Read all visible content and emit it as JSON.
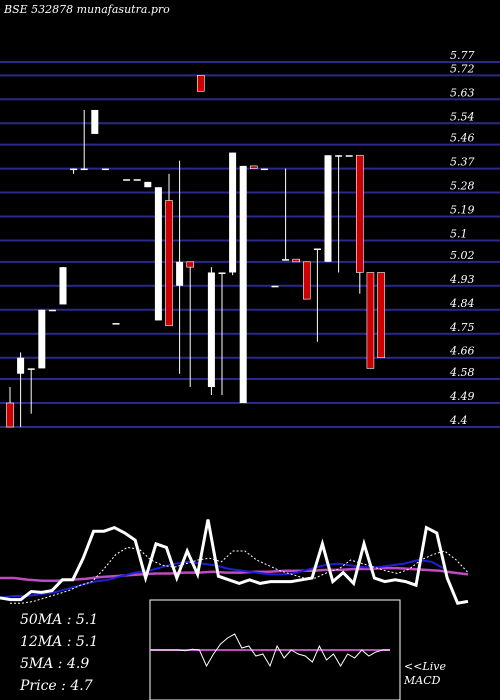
{
  "watermark": "BSE 532878  munafasutra.pro",
  "chart_data": {
    "type": "candlestick",
    "y_ticks": [
      5.77,
      5.72,
      5.63,
      5.54,
      5.46,
      5.37,
      5.28,
      5.19,
      5.1,
      5.02,
      4.93,
      4.84,
      4.75,
      4.66,
      4.58,
      4.49,
      4.4
    ],
    "y_tick_labels": [
      "5.77",
      "5.72",
      "5.63",
      "5.54",
      "5.46",
      "5.37",
      "5.28",
      "5.19",
      "5.1",
      "5.02",
      "4.93",
      "4.84",
      "4.75",
      "4.66",
      "4.58",
      "4.49",
      "4.4"
    ],
    "ylim": [
      4.4,
      5.77
    ],
    "grid": true,
    "candles": [
      {
        "o": 4.49,
        "c": 4.4,
        "h": 4.55,
        "l": 4.4
      },
      {
        "o": 4.6,
        "c": 4.66,
        "h": 4.68,
        "l": 4.4
      },
      {
        "o": 4.62,
        "c": 4.62,
        "h": 4.62,
        "l": 4.45
      },
      {
        "o": 4.62,
        "c": 4.84,
        "h": 4.84,
        "l": 4.62
      },
      {
        "o": 4.84,
        "c": 4.84,
        "h": 4.84,
        "l": 4.84
      },
      {
        "o": 4.86,
        "c": 5.0,
        "h": 5.0,
        "l": 4.86
      },
      {
        "o": 5.37,
        "c": 5.37,
        "h": 5.37,
        "l": 5.35
      },
      {
        "o": 5.37,
        "c": 5.37,
        "h": 5.59,
        "l": 5.37
      },
      {
        "o": 5.5,
        "c": 5.59,
        "h": 5.59,
        "l": 5.5
      },
      {
        "o": 5.37,
        "c": 5.37,
        "h": 5.37,
        "l": 5.37
      },
      {
        "o": 4.79,
        "c": 4.79,
        "h": 4.79,
        "l": 4.79
      },
      {
        "o": 5.33,
        "c": 5.33,
        "h": 5.33,
        "l": 5.33
      },
      {
        "o": 5.33,
        "c": 5.33,
        "h": 5.33,
        "l": 5.33
      },
      {
        "o": 5.3,
        "c": 5.32,
        "h": 5.32,
        "l": 5.3
      },
      {
        "o": 4.8,
        "c": 5.3,
        "h": 5.3,
        "l": 4.8
      },
      {
        "o": 5.25,
        "c": 4.78,
        "h": 5.35,
        "l": 4.78
      },
      {
        "o": 4.93,
        "c": 5.02,
        "h": 5.4,
        "l": 4.6
      },
      {
        "o": 5.02,
        "c": 5.0,
        "h": 5.02,
        "l": 4.55
      },
      {
        "o": 5.72,
        "c": 5.66,
        "h": 5.72,
        "l": 5.66
      },
      {
        "o": 4.55,
        "c": 4.98,
        "h": 5.0,
        "l": 4.52
      },
      {
        "o": 4.98,
        "c": 4.98,
        "h": 4.98,
        "l": 4.52
      },
      {
        "o": 4.98,
        "c": 5.43,
        "h": 5.43,
        "l": 4.97
      },
      {
        "o": 4.49,
        "c": 5.38,
        "h": 5.38,
        "l": 4.49
      },
      {
        "o": 5.38,
        "c": 5.37,
        "h": 5.38,
        "l": 5.37
      },
      {
        "o": 5.37,
        "c": 5.37,
        "h": 5.37,
        "l": 5.37
      },
      {
        "o": 4.93,
        "c": 4.93,
        "h": 4.93,
        "l": 4.93
      },
      {
        "o": 5.03,
        "c": 5.03,
        "h": 5.37,
        "l": 5.03
      },
      {
        "o": 5.03,
        "c": 5.02,
        "h": 5.03,
        "l": 5.02
      },
      {
        "o": 5.02,
        "c": 4.88,
        "h": 5.02,
        "l": 4.88
      },
      {
        "o": 5.07,
        "c": 5.07,
        "h": 5.07,
        "l": 4.72
      },
      {
        "o": 5.02,
        "c": 5.42,
        "h": 5.42,
        "l": 5.02
      },
      {
        "o": 5.42,
        "c": 5.42,
        "h": 5.42,
        "l": 4.98
      },
      {
        "o": 5.42,
        "c": 5.42,
        "h": 5.42,
        "l": 5.42
      },
      {
        "o": 5.42,
        "c": 4.98,
        "h": 5.42,
        "l": 4.9
      },
      {
        "o": 4.98,
        "c": 4.62,
        "h": 4.98,
        "l": 4.62
      },
      {
        "o": 4.98,
        "c": 4.66,
        "h": 4.98,
        "l": 4.66
      }
    ],
    "price_line": [
      0.08,
      0.06,
      0.06,
      0.15,
      0.14,
      0.16,
      0.28,
      0.28,
      0.52,
      0.82,
      0.82,
      0.86,
      0.8,
      0.72,
      0.3,
      0.68,
      0.64,
      0.3,
      0.6,
      0.34,
      0.95,
      0.32,
      0.28,
      0.24,
      0.28,
      0.24,
      0.26,
      0.26,
      0.26,
      0.28,
      0.3,
      0.68,
      0.26,
      0.36,
      0.24,
      0.68,
      0.3,
      0.26,
      0.28,
      0.26,
      0.22,
      0.86,
      0.8,
      0.3,
      0.02,
      0.04
    ],
    "ma_short": [
      0.02,
      0.02,
      0.04,
      0.08,
      0.12,
      0.16,
      0.22,
      0.26,
      0.4,
      0.56,
      0.64,
      0.62,
      0.5,
      0.44,
      0.42,
      0.46,
      0.5,
      0.52,
      0.48,
      0.6,
      0.6,
      0.5,
      0.44,
      0.38,
      0.34,
      0.3,
      0.3,
      0.36,
      0.4,
      0.5,
      0.46,
      0.42,
      0.38,
      0.35,
      0.4,
      0.5,
      0.56,
      0.6,
      0.5,
      0.36
    ],
    "ma_mid": [
      0.08,
      0.1,
      0.1,
      0.12,
      0.14,
      0.18,
      0.22,
      0.26,
      0.28,
      0.32,
      0.36,
      0.38,
      0.42,
      0.46,
      0.48,
      0.46,
      0.44,
      0.4,
      0.38,
      0.36,
      0.34,
      0.34,
      0.36,
      0.4,
      0.44,
      0.46,
      0.44,
      0.42,
      0.42,
      0.44,
      0.46,
      0.5,
      0.48,
      0.4
    ],
    "ma_long": [
      0.3,
      0.3,
      0.28,
      0.27,
      0.27,
      0.28,
      0.29,
      0.31,
      0.32,
      0.33,
      0.34,
      0.35,
      0.35,
      0.36,
      0.36,
      0.37,
      0.36,
      0.36,
      0.37,
      0.37,
      0.38,
      0.38,
      0.38,
      0.39,
      0.39,
      0.4,
      0.4,
      0.41,
      0.41,
      0.4,
      0.39,
      0.38,
      0.36,
      0.34
    ],
    "macd_line": [
      0.5,
      0.5,
      0.5,
      0.5,
      0.5,
      0.48,
      0.52,
      0.5,
      0.1,
      0.4,
      0.65,
      0.8,
      0.9,
      0.55,
      0.6,
      0.35,
      0.4,
      0.1,
      0.6,
      0.3,
      0.5,
      0.4,
      0.35,
      0.2,
      0.6,
      0.25,
      0.4,
      0.1,
      0.4,
      0.3,
      0.5,
      0.35,
      0.45,
      0.5,
      0.5
    ],
    "signal_line": [
      0.5,
      0.5,
      0.5,
      0.5,
      0.5,
      0.5,
      0.5,
      0.5,
      0.5,
      0.5,
      0.5,
      0.5,
      0.5,
      0.5,
      0.5,
      0.5,
      0.5,
      0.5,
      0.5,
      0.5,
      0.5,
      0.5,
      0.5,
      0.5,
      0.5
    ],
    "colors": {
      "up": "#ffffff",
      "down": "#cc0000",
      "grid": "#2a2a8a",
      "price": "#ffffff",
      "ma_short": "#ffffff",
      "ma_mid": "#1f1fd6",
      "ma_long": "#c04ac0",
      "signal": "#c04ac0"
    }
  },
  "stats": {
    "ma50": "50MA : 5.1",
    "ma12": "12MA : 5.1",
    "ma5": "5MA : 4.9",
    "price": "Price   : 4.7"
  },
  "macd_label_1": "<<Live",
  "macd_label_2": "MACD"
}
